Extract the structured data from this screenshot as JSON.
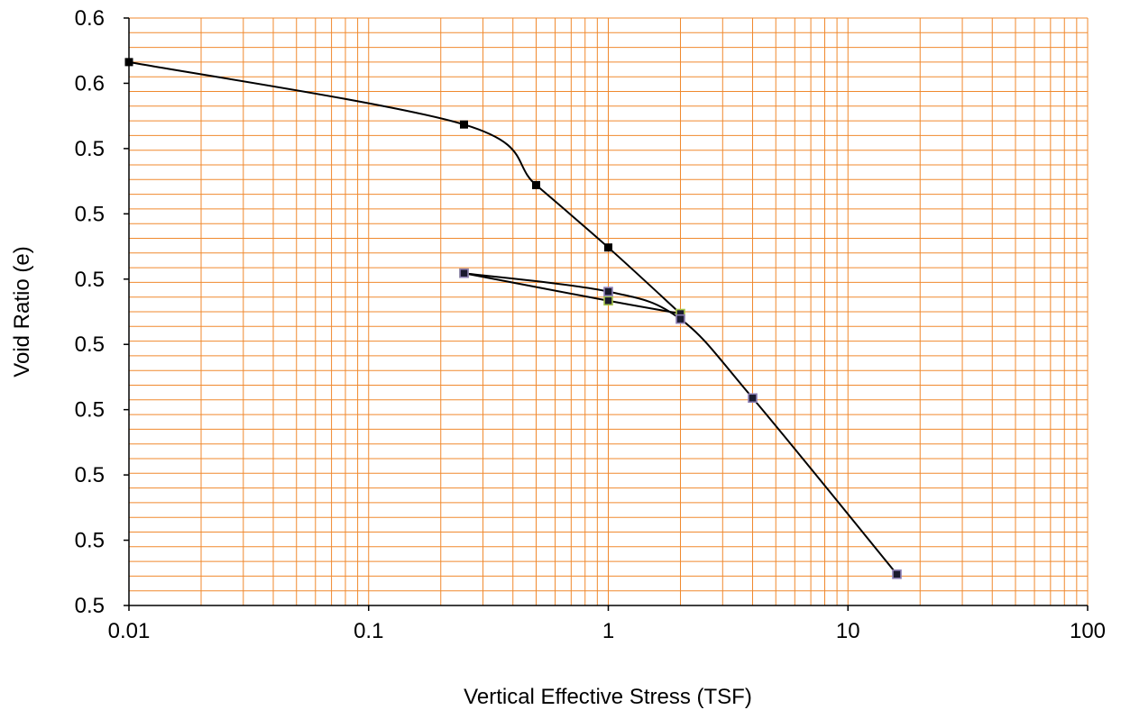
{
  "chart_data": {
    "type": "line",
    "title": "",
    "xlabel": "Vertical Effective Stress (TSF)",
    "ylabel": "Void Ratio (e)",
    "x_scale": "log",
    "xlim": [
      0.01,
      100
    ],
    "ylim": [
      0.49,
      0.65
    ],
    "grid": true,
    "legend": "none",
    "x_tick_labels": [
      "0.01",
      "0.1",
      "1",
      "10",
      "100"
    ],
    "y_tick_labels": [
      "0.5",
      "0.5",
      "0.5",
      "0.5",
      "0.5",
      "0.5",
      "0.5",
      "0.5",
      "0.6",
      "0.6"
    ],
    "colors": {
      "grid": "#f0892e",
      "axis": "#000000",
      "curve": "#000000",
      "loading_marker": "#000000",
      "unload_marker": "#8c7fb5",
      "reload_marker": "#a6c64a"
    },
    "series": [
      {
        "x": [
          0.01,
          0.25,
          0.5,
          1,
          2
        ],
        "y": [
          0.638,
          0.621,
          0.6045,
          0.5875,
          0.5695
        ]
      },
      {
        "x": [
          2,
          1,
          0.25
        ],
        "y": [
          0.5695,
          0.573,
          0.5805
        ]
      },
      {
        "x": [
          0.25,
          1,
          2,
          4,
          16
        ],
        "y": [
          0.5805,
          0.5755,
          0.568,
          0.5465,
          0.4985
        ]
      }
    ]
  }
}
